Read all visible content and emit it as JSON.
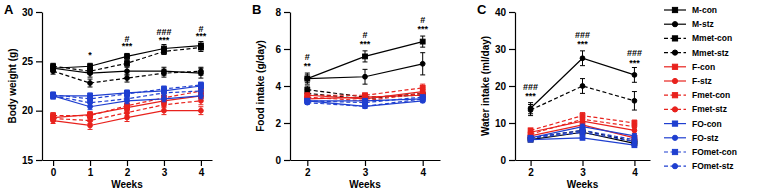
{
  "chart_data": [
    {
      "type": "line",
      "title": "A",
      "x_label": "Weeks",
      "y_label": "Body weight (g)",
      "x": [
        0,
        1,
        2,
        3,
        4
      ],
      "xlim": [
        -0.3,
        4.3
      ],
      "xticks": [
        0,
        1,
        2,
        3,
        4
      ],
      "ylim": [
        15,
        30
      ],
      "yticks": [
        15,
        20,
        25,
        30
      ],
      "legend": "right",
      "series": [
        {
          "name": "M-con",
          "color": "#000000",
          "marker": "square",
          "line_style": "solid",
          "values": [
            24.3,
            24.5,
            25.5,
            26.3,
            26.6
          ],
          "errors": [
            0.3,
            0.3,
            0.3,
            0.4,
            0.4
          ]
        },
        {
          "name": "M-stz",
          "color": "#000000",
          "marker": "circle",
          "line_style": "solid",
          "values": [
            24.3,
            23.8,
            24.0,
            24.0,
            23.8
          ],
          "errors": [
            0.3,
            0.4,
            0.4,
            0.4,
            0.5
          ]
        },
        {
          "name": "Mmet-con",
          "color": "#000000",
          "marker": "square",
          "line_style": "dashed",
          "values": [
            24.5,
            24.0,
            24.8,
            26.0,
            26.4
          ],
          "errors": [
            0.3,
            0.3,
            0.3,
            0.3,
            0.4
          ]
        },
        {
          "name": "Mmet-stz",
          "color": "#000000",
          "marker": "circle",
          "line_style": "dashed",
          "values": [
            24.0,
            22.8,
            23.3,
            23.8,
            24.0
          ],
          "errors": [
            0.3,
            0.4,
            0.4,
            0.4,
            0.4
          ]
        },
        {
          "name": "F-con",
          "color": "#e8221d",
          "marker": "square",
          "line_style": "solid",
          "values": [
            19.3,
            19.6,
            20.3,
            21.0,
            21.5
          ],
          "errors": [
            0.3,
            0.3,
            0.3,
            0.3,
            0.3
          ]
        },
        {
          "name": "F-stz",
          "color": "#e8221d",
          "marker": "circle",
          "line_style": "solid",
          "values": [
            19.0,
            18.5,
            19.3,
            20.0,
            20.0
          ],
          "errors": [
            0.3,
            0.4,
            0.4,
            0.4,
            0.4
          ]
        },
        {
          "name": "Fmet-con",
          "color": "#e8221d",
          "marker": "square",
          "line_style": "dashed",
          "values": [
            19.5,
            19.5,
            20.5,
            21.3,
            22.0
          ],
          "errors": [
            0.3,
            0.3,
            0.3,
            0.3,
            0.3
          ]
        },
        {
          "name": "Fmet-stz",
          "color": "#e8221d",
          "marker": "circle",
          "line_style": "dashed",
          "values": [
            19.2,
            19.0,
            19.8,
            20.6,
            21.0
          ],
          "errors": [
            0.3,
            0.3,
            0.3,
            0.3,
            0.4
          ]
        },
        {
          "name": "FO-con",
          "color": "#1f3fd0",
          "marker": "square",
          "line_style": "solid",
          "values": [
            21.5,
            21.5,
            21.8,
            22.0,
            22.5
          ],
          "errors": [
            0.3,
            0.3,
            0.3,
            0.3,
            0.3
          ]
        },
        {
          "name": "FO-stz",
          "color": "#1f3fd0",
          "marker": "circle",
          "line_style": "solid",
          "values": [
            21.5,
            20.4,
            21.0,
            21.2,
            21.5
          ],
          "errors": [
            0.3,
            0.3,
            0.3,
            0.3,
            0.3
          ]
        },
        {
          "name": "FOmet-con",
          "color": "#1f3fd0",
          "marker": "square",
          "line_style": "dashed",
          "values": [
            21.6,
            21.2,
            21.7,
            22.2,
            22.6
          ],
          "errors": [
            0.3,
            0.3,
            0.3,
            0.3,
            0.3
          ]
        },
        {
          "name": "FOmet-stz",
          "color": "#1f3fd0",
          "marker": "circle",
          "line_style": "dashed",
          "values": [
            21.5,
            20.8,
            21.2,
            21.8,
            22.0
          ],
          "errors": [
            0.3,
            0.3,
            0.3,
            0.3,
            0.3
          ]
        }
      ],
      "annotations": [
        {
          "x": 1,
          "y": 25.3,
          "text": "*"
        },
        {
          "x": 2,
          "y": 27.0,
          "text": "#"
        },
        {
          "x": 2,
          "y": 26.2,
          "text": "***"
        },
        {
          "x": 3,
          "y": 27.7,
          "text": "###"
        },
        {
          "x": 3,
          "y": 26.9,
          "text": "***"
        },
        {
          "x": 4,
          "y": 28.0,
          "text": "#"
        },
        {
          "x": 4,
          "y": 27.3,
          "text": "***"
        }
      ]
    },
    {
      "type": "line",
      "title": "B",
      "x_label": "Weeks",
      "y_label": "Food intake (g/day)",
      "x": [
        2,
        3,
        4
      ],
      "xlim": [
        1.7,
        4.3
      ],
      "xticks": [
        2,
        3,
        4
      ],
      "ylim": [
        0,
        8
      ],
      "yticks": [
        0,
        2,
        4,
        6,
        8
      ],
      "series": [
        {
          "name": "M-con",
          "color": "#000000",
          "marker": "square",
          "line_style": "solid",
          "values": [
            4.4,
            5.6,
            6.4
          ],
          "errors": [
            0.2,
            0.3,
            0.3
          ]
        },
        {
          "name": "M-stz",
          "color": "#000000",
          "marker": "circle",
          "line_style": "solid",
          "values": [
            4.4,
            4.5,
            5.2
          ],
          "errors": [
            0.3,
            0.4,
            0.6
          ]
        },
        {
          "name": "Mmet-con",
          "color": "#000000",
          "marker": "square",
          "line_style": "dashed",
          "values": [
            3.8,
            3.4,
            3.5
          ],
          "errors": [
            0.2,
            0.2,
            0.2
          ]
        },
        {
          "name": "Mmet-stz",
          "color": "#000000",
          "marker": "circle",
          "line_style": "dashed",
          "values": [
            3.6,
            3.3,
            3.6
          ],
          "errors": [
            0.2,
            0.2,
            0.2
          ]
        },
        {
          "name": "F-con",
          "color": "#e8221d",
          "marker": "square",
          "line_style": "solid",
          "values": [
            3.3,
            3.4,
            3.5
          ],
          "errors": [
            0.1,
            0.1,
            0.1
          ]
        },
        {
          "name": "F-stz",
          "color": "#e8221d",
          "marker": "circle",
          "line_style": "solid",
          "values": [
            3.5,
            3.3,
            3.7
          ],
          "errors": [
            0.1,
            0.2,
            0.2
          ]
        },
        {
          "name": "Fmet-con",
          "color": "#e8221d",
          "marker": "square",
          "line_style": "dashed",
          "values": [
            3.5,
            3.5,
            3.9
          ],
          "errors": [
            0.1,
            0.1,
            0.2
          ]
        },
        {
          "name": "Fmet-stz",
          "color": "#e8221d",
          "marker": "circle",
          "line_style": "dashed",
          "values": [
            3.4,
            3.2,
            3.6
          ],
          "errors": [
            0.1,
            0.1,
            0.2
          ]
        },
        {
          "name": "FO-con",
          "color": "#1f3fd0",
          "marker": "square",
          "line_style": "solid",
          "values": [
            3.2,
            3.2,
            3.3
          ],
          "errors": [
            0.1,
            0.1,
            0.1
          ]
        },
        {
          "name": "FO-stz",
          "color": "#1f3fd0",
          "marker": "circle",
          "line_style": "solid",
          "values": [
            3.2,
            2.9,
            3.2
          ],
          "errors": [
            0.1,
            0.1,
            0.1
          ]
        },
        {
          "name": "FOmet-con",
          "color": "#1f3fd0",
          "marker": "square",
          "line_style": "dashed",
          "values": [
            3.2,
            3.1,
            3.4
          ],
          "errors": [
            0.1,
            0.1,
            0.1
          ]
        },
        {
          "name": "FOmet-stz",
          "color": "#1f3fd0",
          "marker": "circle",
          "line_style": "dashed",
          "values": [
            3.1,
            2.9,
            3.3
          ],
          "errors": [
            0.1,
            0.1,
            0.1
          ]
        }
      ],
      "annotations": [
        {
          "x": 2,
          "y": 5.4,
          "text": "#"
        },
        {
          "x": 2,
          "y": 4.9,
          "text": "**"
        },
        {
          "x": 3,
          "y": 6.6,
          "text": "#"
        },
        {
          "x": 3,
          "y": 6.1,
          "text": "***"
        },
        {
          "x": 4,
          "y": 7.4,
          "text": "#"
        },
        {
          "x": 4,
          "y": 6.9,
          "text": "***"
        }
      ]
    },
    {
      "type": "line",
      "title": "C",
      "x_label": "Weeks",
      "y_label": "Water intake (ml/day)",
      "x": [
        2,
        3,
        4
      ],
      "xlim": [
        1.7,
        4.3
      ],
      "xticks": [
        2,
        3,
        4
      ],
      "ylim": [
        0,
        40
      ],
      "yticks": [
        0,
        10,
        20,
        30,
        40
      ],
      "series": [
        {
          "name": "M-con",
          "color": "#000000",
          "marker": "square",
          "line_style": "solid",
          "values": [
            5.5,
            7.5,
            4.5
          ],
          "errors": [
            0.5,
            0.6,
            0.5
          ]
        },
        {
          "name": "M-stz",
          "color": "#000000",
          "marker": "circle",
          "line_style": "solid",
          "values": [
            14,
            27.5,
            23
          ],
          "errors": [
            1.5,
            2,
            2
          ]
        },
        {
          "name": "Mmet-con",
          "color": "#000000",
          "marker": "square",
          "line_style": "dashed",
          "values": [
            6,
            8,
            5
          ],
          "errors": [
            0.5,
            0.6,
            0.5
          ]
        },
        {
          "name": "Mmet-stz",
          "color": "#000000",
          "marker": "circle",
          "line_style": "dashed",
          "values": [
            13.5,
            20,
            16
          ],
          "errors": [
            1.5,
            2,
            2.5
          ]
        },
        {
          "name": "F-con",
          "color": "#e8221d",
          "marker": "square",
          "line_style": "solid",
          "values": [
            6.5,
            9.5,
            6
          ],
          "errors": [
            0.5,
            0.8,
            0.6
          ]
        },
        {
          "name": "F-stz",
          "color": "#e8221d",
          "marker": "circle",
          "line_style": "solid",
          "values": [
            7.5,
            10.5,
            8
          ],
          "errors": [
            0.6,
            0.8,
            0.8
          ]
        },
        {
          "name": "Fmet-con",
          "color": "#e8221d",
          "marker": "square",
          "line_style": "dashed",
          "values": [
            8,
            12,
            10
          ],
          "errors": [
            0.6,
            0.8,
            0.8
          ]
        },
        {
          "name": "Fmet-stz",
          "color": "#e8221d",
          "marker": "circle",
          "line_style": "dashed",
          "values": [
            7,
            11,
            9
          ],
          "errors": [
            0.6,
            0.8,
            0.8
          ]
        },
        {
          "name": "FO-con",
          "color": "#1f3fd0",
          "marker": "square",
          "line_style": "solid",
          "values": [
            5.5,
            6,
            4
          ],
          "errors": [
            0.5,
            0.5,
            0.5
          ]
        },
        {
          "name": "FO-stz",
          "color": "#1f3fd0",
          "marker": "circle",
          "line_style": "solid",
          "values": [
            6,
            9,
            6.5
          ],
          "errors": [
            0.5,
            0.7,
            0.6
          ]
        },
        {
          "name": "FOmet-con",
          "color": "#1f3fd0",
          "marker": "square",
          "line_style": "dashed",
          "values": [
            6,
            8,
            5.5
          ],
          "errors": [
            0.5,
            0.6,
            0.5
          ]
        },
        {
          "name": "FOmet-stz",
          "color": "#1f3fd0",
          "marker": "circle",
          "line_style": "dashed",
          "values": [
            5.8,
            7.5,
            5
          ],
          "errors": [
            0.5,
            0.6,
            0.5
          ]
        }
      ],
      "annotations": [
        {
          "x": 2,
          "y": 19,
          "text": "###"
        },
        {
          "x": 2,
          "y": 16.5,
          "text": "***"
        },
        {
          "x": 3,
          "y": 33,
          "text": "###"
        },
        {
          "x": 3,
          "y": 30.5,
          "text": "***"
        },
        {
          "x": 4,
          "y": 28,
          "text": "###"
        },
        {
          "x": 4,
          "y": 25.5,
          "text": "***"
        }
      ]
    }
  ]
}
